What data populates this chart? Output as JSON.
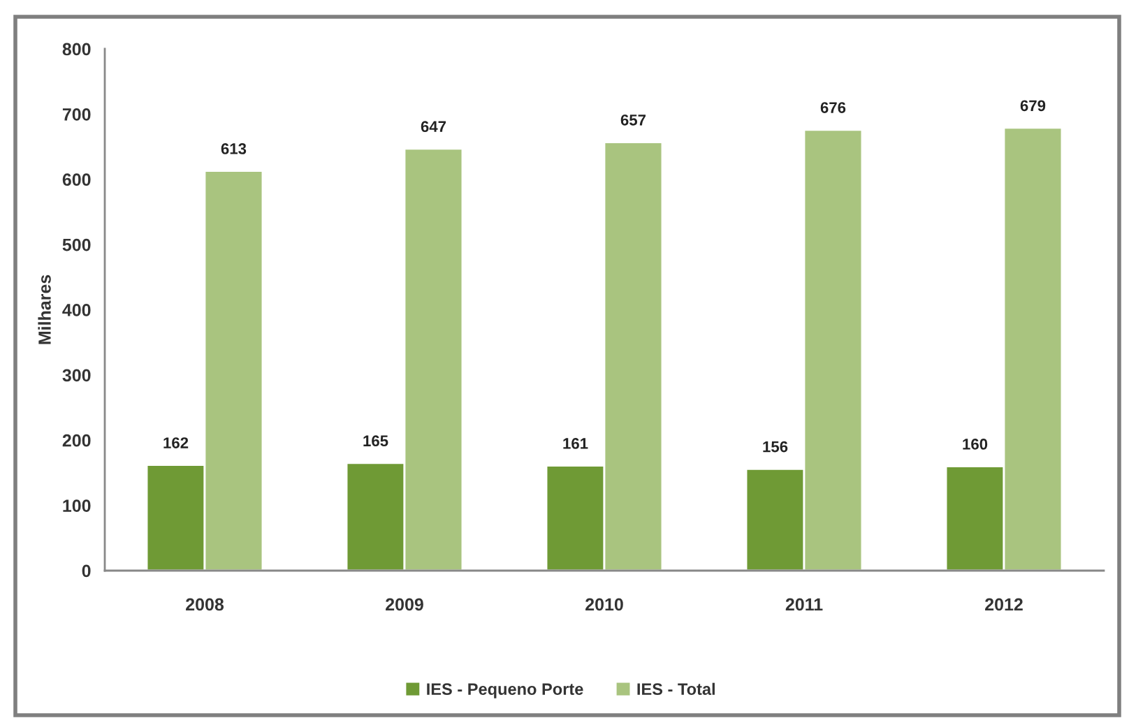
{
  "chart_data": {
    "type": "bar",
    "ylabel": "Milhares",
    "categories": [
      "2008",
      "2009",
      "2010",
      "2011",
      "2012"
    ],
    "series": [
      {
        "name": "IES - Pequeno Porte",
        "color": "#6f9a35",
        "values": [
          162,
          165,
          161,
          156,
          160
        ]
      },
      {
        "name": "IES - Total",
        "color": "#a9c47f",
        "values": [
          613,
          647,
          657,
          676,
          679
        ]
      }
    ],
    "ylim": [
      0,
      800
    ],
    "yticks": [
      0,
      100,
      200,
      300,
      400,
      500,
      600,
      700,
      800
    ],
    "data_labels": true,
    "legend": "bottom",
    "grid": false
  }
}
